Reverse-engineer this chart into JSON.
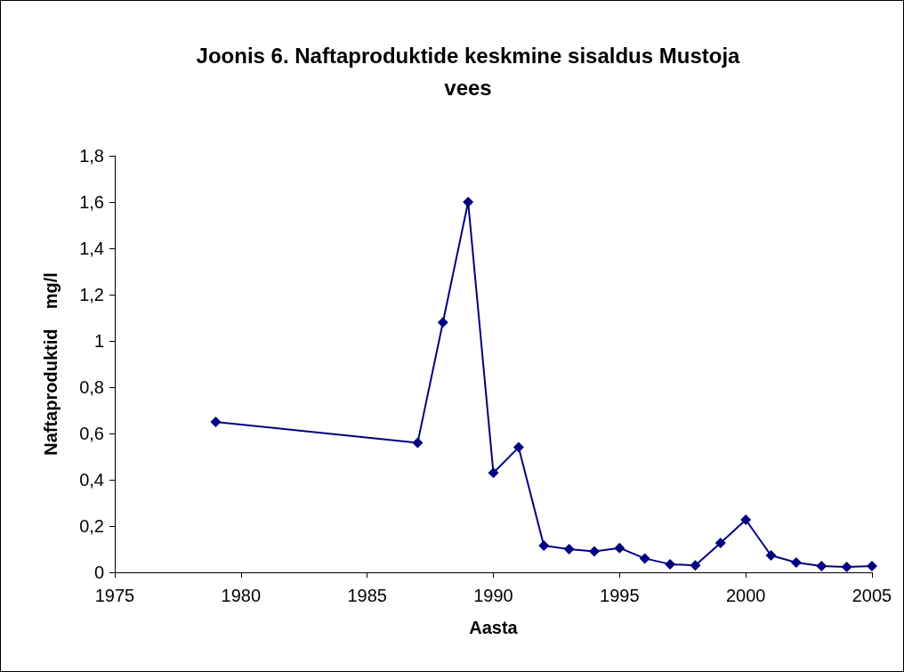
{
  "chart_data": {
    "type": "line",
    "title": "Joonis 6. Naftaproduktide keskmine sisaldus Mustoja\nvees",
    "xlabel": "Aasta",
    "ylabel": "Naftaproduktid    mg/l",
    "x": [
      1979,
      1987,
      1988,
      1989,
      1990,
      1991,
      1992,
      1993,
      1994,
      1995,
      1996,
      1997,
      1998,
      1999,
      2000,
      2001,
      2002,
      2003,
      2004,
      2005
    ],
    "series": [
      {
        "color": "#000080",
        "values": [
          0.65,
          0.56,
          1.08,
          1.6,
          0.43,
          0.54,
          0.115,
          0.1,
          0.09,
          0.105,
          0.06,
          0.035,
          0.03,
          0.127,
          0.227,
          0.073,
          0.042,
          0.027,
          0.023,
          0.027
        ]
      }
    ],
    "xlim": [
      1975,
      2005
    ],
    "xticks": [
      1975,
      1980,
      1985,
      1990,
      1995,
      2000,
      2005
    ],
    "ylim": [
      0,
      1.8
    ],
    "yticks": [
      0,
      {
        "value": 0.2,
        "label": "0,2"
      },
      {
        "value": 0.4,
        "label": "0,4"
      },
      {
        "value": 0.6,
        "label": "0,6"
      },
      {
        "value": 0.8,
        "label": "0,8"
      },
      1,
      {
        "value": 1.2,
        "label": "1,2"
      },
      {
        "value": 1.4,
        "label": "1,4"
      },
      {
        "value": 1.6,
        "label": "1,6"
      },
      {
        "value": 1.8,
        "label": "1,8"
      }
    ],
    "grid": false,
    "marker": "diamond",
    "line_style": "solid"
  }
}
